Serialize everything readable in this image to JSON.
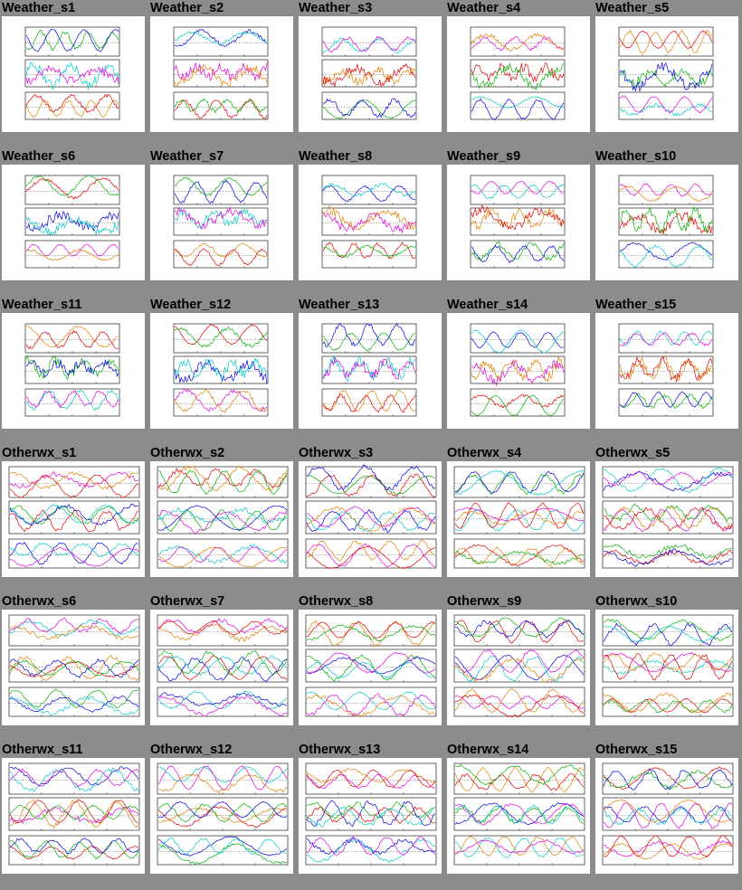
{
  "page": {
    "background": "#8c8c8c"
  },
  "colors": {
    "panel_bg": "#ffffff",
    "series": [
      "#e00000",
      "#00b000",
      "#0000e0",
      "#00c8c8",
      "#e000e0",
      "#e08000"
    ]
  },
  "rows": [
    {
      "group": "weather",
      "items": [
        {
          "label": "Weather_s1"
        },
        {
          "label": "Weather_s2"
        },
        {
          "label": "Weather_s3"
        },
        {
          "label": "Weather_s4"
        },
        {
          "label": "Weather_s5"
        }
      ]
    },
    {
      "group": "weather",
      "items": [
        {
          "label": "Weather_s6"
        },
        {
          "label": "Weather_s7"
        },
        {
          "label": "Weather_s8"
        },
        {
          "label": "Weather_s9"
        },
        {
          "label": "Weather_s10"
        }
      ]
    },
    {
      "group": "weather",
      "items": [
        {
          "label": "Weather_s11"
        },
        {
          "label": "Weather_s12"
        },
        {
          "label": "Weather_s13"
        },
        {
          "label": "Weather_s14"
        },
        {
          "label": "Weather_s15"
        }
      ]
    },
    {
      "group": "otherwx",
      "items": [
        {
          "label": "Otherwx_s1"
        },
        {
          "label": "Otherwx_s2"
        },
        {
          "label": "Otherwx_s3"
        },
        {
          "label": "Otherwx_s4"
        },
        {
          "label": "Otherwx_s5"
        }
      ]
    },
    {
      "group": "otherwx",
      "items": [
        {
          "label": "Otherwx_s6"
        },
        {
          "label": "Otherwx_s7"
        },
        {
          "label": "Otherwx_s8"
        },
        {
          "label": "Otherwx_s9"
        },
        {
          "label": "Otherwx_s10"
        }
      ]
    },
    {
      "group": "otherwx",
      "items": [
        {
          "label": "Otherwx_s11"
        },
        {
          "label": "Otherwx_s12"
        },
        {
          "label": "Otherwx_s13"
        },
        {
          "label": "Otherwx_s14"
        },
        {
          "label": "Otherwx_s15"
        }
      ]
    }
  ]
}
